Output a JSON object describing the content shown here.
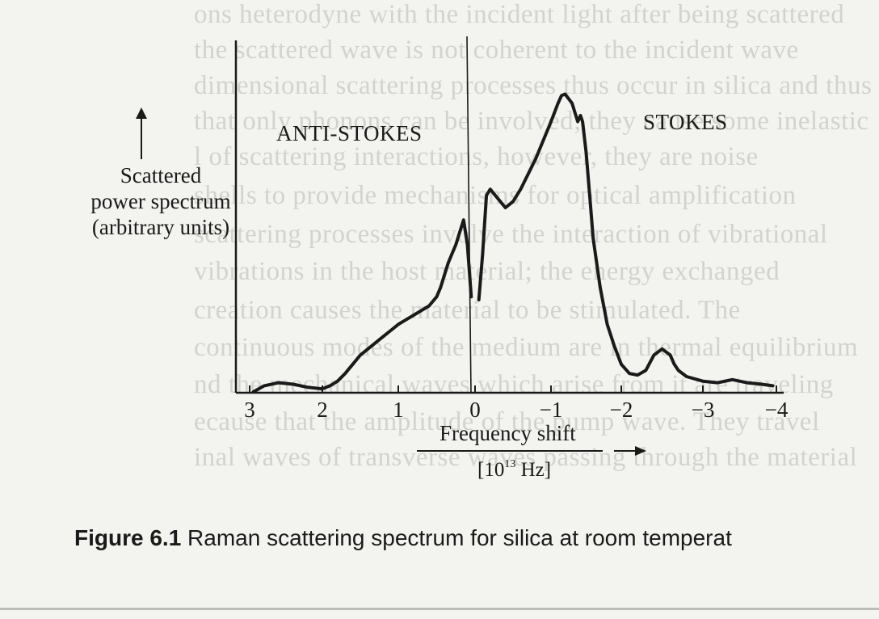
{
  "background_text": {
    "lines": [
      "ons heterodyne with the incident light after being scattered",
      "the scattered wave is not coherent to the incident wave",
      "dimensional scattering processes thus occur in silica and thus",
      "that only phonons can be involved; they cause some inelastic",
      "l of scattering interactions, however, they are noise",
      "shells to provide mechanisms for optical amplification",
      "scattering processes involve the interaction of vibrational",
      "vibrations in the host material; the energy exchanged",
      "creation causes the material to be stimulated. The",
      "continuous modes of the medium are in thermal equilibrium",
      "nd the mechanical waves which arise from it are traveling",
      "ecause that the amplitude of the pump wave. They travel",
      "inal waves of transverse waves passing through the material"
    ]
  },
  "chart_data": {
    "type": "line",
    "xlabel": "Frequency shift",
    "xunit_prefix": "[10",
    "xunit_exp": "13",
    "xunit_suffix": " Hz]",
    "ylabel_lines": [
      "Scattered",
      "power spectrum",
      "(arbitrary units)"
    ],
    "xlim": [
      3,
      -4
    ],
    "ylim": [
      0,
      1
    ],
    "xticks": [
      3,
      2,
      1,
      0,
      -1,
      -2,
      -3,
      -4
    ],
    "xtick_labels": [
      "3",
      "2",
      "1",
      "0",
      "−1",
      "−2",
      "−3",
      "−4"
    ],
    "region_labels": [
      "ANTI-STOKES",
      "STOKES"
    ],
    "grid": false,
    "line_color": "#1a1a1a",
    "series": [
      {
        "x": [
          2.95,
          2.8,
          2.6,
          2.4,
          2.2,
          2.0,
          1.9,
          1.8,
          1.7,
          1.6,
          1.5,
          1.4,
          1.3,
          1.2,
          1.1,
          1.0,
          0.9,
          0.8,
          0.7,
          0.6,
          0.5,
          0.45,
          0.4,
          0.35,
          0.3,
          0.25,
          0.2,
          0.15,
          0.1,
          0.05
        ],
        "y": [
          0.0,
          0.02,
          0.03,
          0.025,
          0.015,
          0.01,
          0.02,
          0.035,
          0.06,
          0.09,
          0.12,
          0.14,
          0.16,
          0.18,
          0.2,
          0.22,
          0.235,
          0.25,
          0.265,
          0.28,
          0.31,
          0.34,
          0.38,
          0.42,
          0.45,
          0.48,
          0.52,
          0.56,
          0.48,
          0.31
        ]
      },
      {
        "x": [
          -0.05,
          -0.1,
          -0.15,
          -0.2,
          -0.3,
          -0.4,
          -0.5,
          -0.6,
          -0.7,
          -0.8,
          -0.9,
          -1.0,
          -1.1,
          -1.15,
          -1.2,
          -1.3,
          -1.38,
          -1.42,
          -1.45,
          -1.5,
          -1.55,
          -1.6,
          -1.7,
          -1.8,
          -1.9,
          -2.0,
          -2.1,
          -2.2,
          -2.3,
          -2.4,
          -2.5,
          -2.6,
          -2.65,
          -2.7,
          -2.8,
          -3.0,
          -3.2,
          -3.4,
          -3.6,
          -3.8,
          -3.95
        ],
        "y": [
          0.3,
          0.45,
          0.64,
          0.66,
          0.63,
          0.6,
          0.62,
          0.66,
          0.71,
          0.76,
          0.82,
          0.88,
          0.94,
          0.965,
          0.97,
          0.94,
          0.88,
          0.9,
          0.88,
          0.78,
          0.64,
          0.5,
          0.34,
          0.22,
          0.15,
          0.09,
          0.06,
          0.055,
          0.07,
          0.12,
          0.14,
          0.12,
          0.09,
          0.07,
          0.05,
          0.035,
          0.03,
          0.04,
          0.03,
          0.025,
          0.02
        ]
      }
    ]
  },
  "caption": {
    "label": "Figure 6.1",
    "text": " Raman scattering spectrum for silica at room temperat"
  }
}
